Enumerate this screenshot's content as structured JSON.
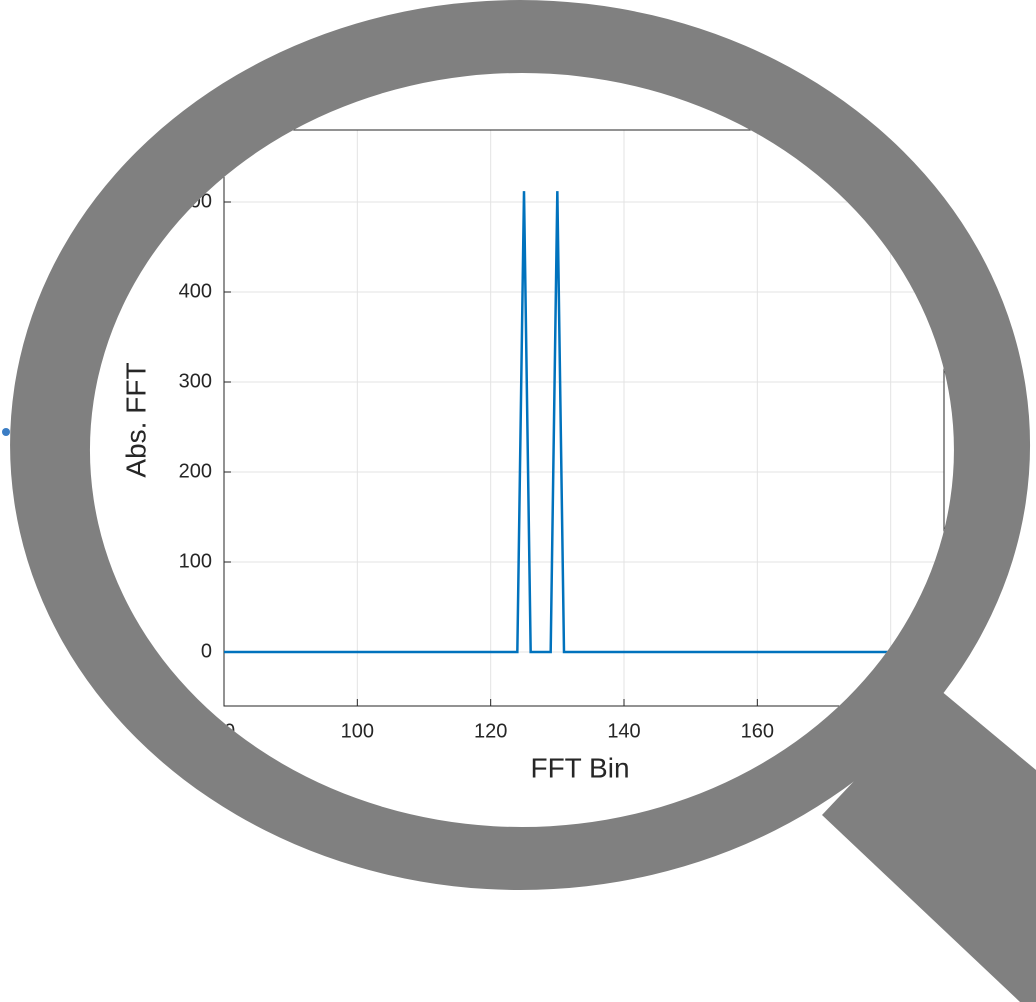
{
  "chart_data": {
    "type": "line",
    "x_label": "FFT Bin",
    "y_label": "Abs. FFT",
    "x": [
      80,
      124,
      125,
      126,
      129,
      130,
      131,
      180
    ],
    "series": [
      {
        "color": "#0072bd",
        "values": [
          0,
          0,
          512,
          0,
          0,
          512,
          0,
          0
        ]
      }
    ],
    "xlim": [
      80,
      188
    ],
    "xticks": [
      80,
      100,
      120,
      140,
      160,
      180
    ],
    "ylim": [
      -60,
      580
    ],
    "yticks": [
      0,
      100,
      200,
      300,
      400,
      500
    ],
    "grid": true
  }
}
